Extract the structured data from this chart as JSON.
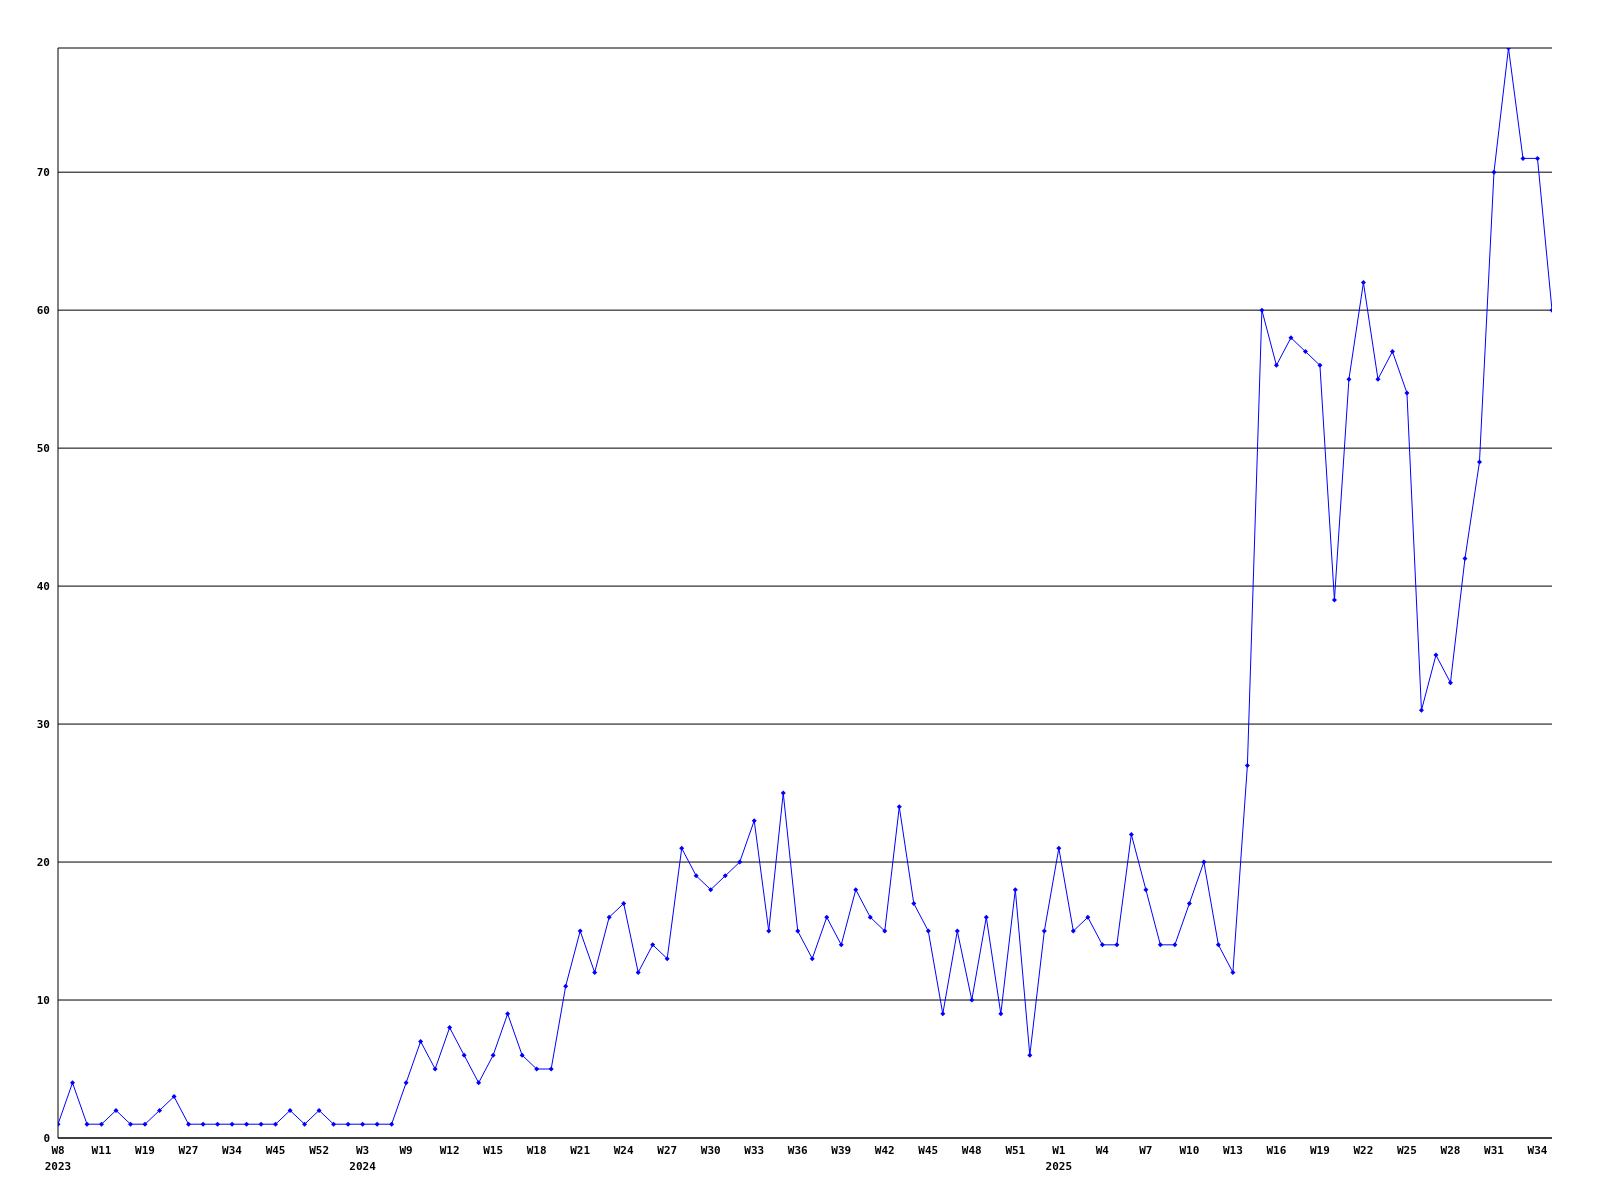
{
  "chart_data": {
    "type": "line",
    "categories": [
      "W8\n2023",
      null,
      null,
      "W11",
      null,
      null,
      "W19",
      null,
      null,
      "W27",
      null,
      null,
      "W34",
      null,
      null,
      "W45",
      null,
      null,
      "W52",
      null,
      null,
      "W3\n2024",
      null,
      null,
      "W9",
      null,
      null,
      "W12",
      null,
      null,
      "W15",
      null,
      null,
      "W18",
      null,
      null,
      "W21",
      null,
      null,
      "W24",
      null,
      null,
      "W27",
      null,
      null,
      "W30",
      null,
      null,
      "W33",
      null,
      null,
      "W36",
      null,
      null,
      "W39",
      null,
      null,
      "W42",
      null,
      null,
      "W45",
      null,
      null,
      "W48",
      null,
      null,
      "W51",
      null,
      null,
      "W1\n2025",
      null,
      null,
      "W4",
      null,
      null,
      "W7",
      null,
      null,
      "W10",
      null,
      null,
      "W13",
      null,
      null,
      "W16",
      null,
      null,
      "W19",
      null,
      null,
      "W22",
      null,
      null,
      "W25",
      null,
      null,
      "W28",
      null,
      null,
      "W31",
      null,
      null,
      "W34",
      null
    ],
    "series": [
      {
        "color": "#0000ff",
        "values": [
          1,
          4,
          1,
          1,
          2,
          1,
          1,
          2,
          3,
          1,
          1,
          1,
          1,
          1,
          1,
          1,
          2,
          1,
          2,
          1,
          1,
          1,
          1,
          1,
          4,
          7,
          5,
          8,
          6,
          4,
          6,
          9,
          6,
          5,
          5,
          11,
          15,
          12,
          16,
          17,
          12,
          14,
          13,
          21,
          19,
          18,
          19,
          20,
          23,
          15,
          25,
          15,
          13,
          16,
          14,
          18,
          16,
          15,
          24,
          17,
          15,
          9,
          15,
          10,
          16,
          9,
          18,
          6,
          15,
          21,
          15,
          16,
          14,
          14,
          22,
          18,
          14,
          14,
          17,
          20,
          14,
          12,
          27,
          60,
          56,
          58,
          57,
          56,
          39,
          55,
          62,
          55,
          57,
          54,
          31,
          35,
          33,
          42,
          49,
          70,
          79,
          71,
          71,
          60
        ]
      }
    ],
    "ylim": [
      0,
      79
    ],
    "yticks": [
      0,
      10,
      20,
      30,
      40,
      50,
      60,
      70
    ],
    "grid": "y",
    "marker": "diamond",
    "line_style": "solid"
  }
}
